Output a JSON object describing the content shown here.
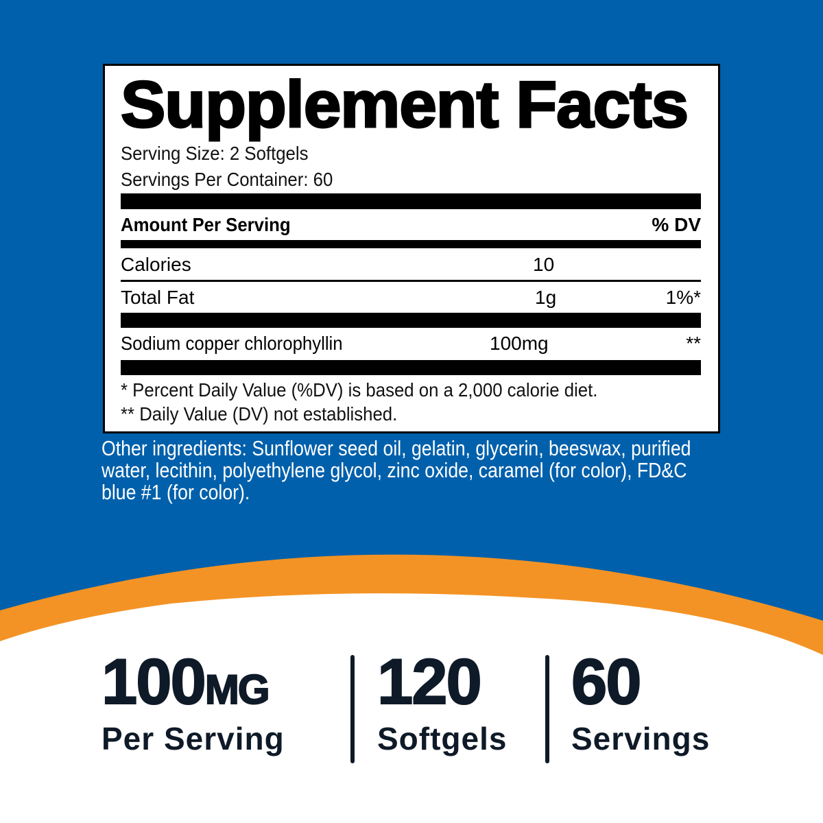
{
  "colors": {
    "background_blue": "#0060ab",
    "accent_orange": "#f39325",
    "text_dark": "#0f1a28"
  },
  "facts": {
    "title": "Supplement Facts",
    "serving_size": "Serving Size: 2 Softgels",
    "servings_per_container": "Servings Per Container: 60",
    "header_amount": "Amount Per Serving",
    "header_dv": "% DV",
    "rows": [
      {
        "name": "Calories",
        "amount": "10",
        "dv": ""
      },
      {
        "name": "Total Fat",
        "amount": "1g",
        "dv": "1%*"
      },
      {
        "name": "Sodium copper chlorophyllin",
        "amount": "100mg",
        "dv": "**"
      }
    ],
    "footnote1": "* Percent Daily Value (%DV) is based on a 2,000 calorie diet.",
    "footnote2": "** Daily Value (DV) not established."
  },
  "other_ingredients": "Other ingredients: Sunflower seed oil, gelatin, glycerin, beeswax, purified water, lecithin, polyethylene glycol, zinc oxide, caramel (for color), FD&C blue #1 (for color).",
  "stats": [
    {
      "value": "100",
      "unit": "MG",
      "label": "Per Serving"
    },
    {
      "value": "120",
      "unit": "",
      "label": "Softgels"
    },
    {
      "value": "60",
      "unit": "",
      "label": "Servings"
    }
  ]
}
